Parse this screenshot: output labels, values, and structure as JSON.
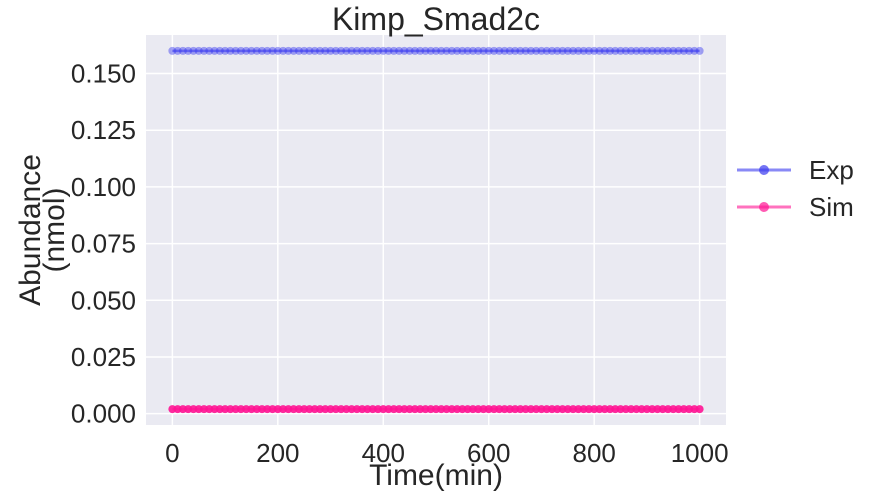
{
  "chart_data": {
    "type": "line",
    "title": "Kimp_Smad2c",
    "xlabel": "Time(min)",
    "ylabel_lines": [
      "Abundance",
      "(nmol)"
    ],
    "xlim": [
      -50,
      1050
    ],
    "ylim": [
      -0.005,
      0.167
    ],
    "xticks": [
      0,
      200,
      400,
      600,
      800,
      1000
    ],
    "xtick_labels": [
      "0",
      "200",
      "400",
      "600",
      "800",
      "1000"
    ],
    "yticks": [
      0.0,
      0.025,
      0.05,
      0.075,
      0.1,
      0.125,
      0.15
    ],
    "ytick_labels": [
      "0.000",
      "0.025",
      "0.050",
      "0.075",
      "0.100",
      "0.125",
      "0.150"
    ],
    "grid": true,
    "legend_position": "right-outside",
    "x_start": 0,
    "x_end": 1000,
    "x_step": 10,
    "series": [
      {
        "name": "Exp",
        "constant_value": 0.16,
        "color": "#3b3bf0"
      },
      {
        "name": "Sim",
        "constant_value": 0.002,
        "color": "#ff1493"
      }
    ]
  }
}
